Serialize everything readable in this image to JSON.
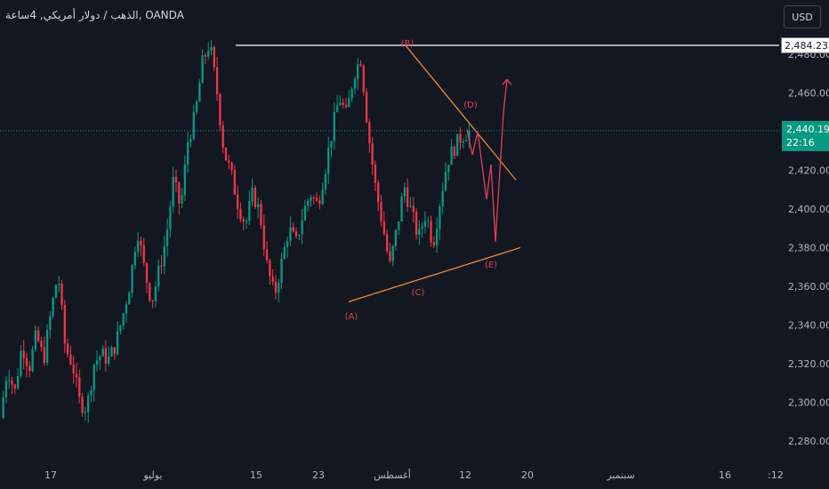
{
  "header": {
    "symbol_title": "الذهب / دولار أمريكي, 4ساعة, OANDA",
    "currency_label": "USD"
  },
  "price_labels": {
    "resistance": "2,484.237",
    "current_price": "2,440.190",
    "countdown": "22:16"
  },
  "colors": {
    "background": "#131722",
    "up_candle": "#089981",
    "down_candle": "#f23645",
    "trendline": "#e8893a",
    "wave_label": "#e0405a",
    "projection": "#e0405a",
    "resistance_line": "#ffffff",
    "current_price_line": "#089981"
  },
  "chart_data": {
    "type": "candlestick",
    "instrument": "XAU/USD",
    "timeframe": "4H",
    "ylim": [
      2272,
      2494
    ],
    "y_ticks": [
      2280,
      2300,
      2320,
      2340,
      2360,
      2380,
      2400,
      2420,
      2440,
      2460,
      2480
    ],
    "y_tick_labels": [
      "2,280.000",
      "2,300.000",
      "2,320.000",
      "2,340.000",
      "2,360.000",
      "2,380.000",
      "2,400.000",
      "2,420.000",
      "2,440.000",
      "2,460.000",
      "2,480.000"
    ],
    "x_tick_labels": [
      "17",
      "يوليو",
      "15",
      "23",
      "أغسطس",
      "12",
      "20",
      "سبتمبر",
      "16",
      ":12"
    ],
    "resistance_level": 2484.237,
    "current_price": 2440.19,
    "price_path": [
      {
        "t": "2024-06-07",
        "p": 2292
      },
      {
        "t": "2024-06-11",
        "p": 2318
      },
      {
        "t": "2024-06-14",
        "p": 2305
      },
      {
        "t": "2024-06-17",
        "p": 2330
      },
      {
        "t": "2024-06-20",
        "p": 2318
      },
      {
        "t": "2024-06-24",
        "p": 2335
      },
      {
        "t": "2024-06-26",
        "p": 2322
      },
      {
        "t": "2024-06-28",
        "p": 2346
      },
      {
        "t": "2024-06-30",
        "p": 2367
      },
      {
        "t": "2024-07-02",
        "p": 2328
      },
      {
        "t": "2024-07-04",
        "p": 2320
      },
      {
        "t": "2024-07-06",
        "p": 2300
      },
      {
        "t": "2024-07-07",
        "p": 2297
      },
      {
        "t": "2024-07-09",
        "p": 2320
      },
      {
        "t": "2024-07-11",
        "p": 2325
      },
      {
        "t": "2024-07-13",
        "p": 2322
      },
      {
        "t": "2024-07-15",
        "p": 2330
      },
      {
        "t": "2024-07-17",
        "p": 2345
      },
      {
        "t": "2024-07-19",
        "p": 2362
      },
      {
        "t": "2024-07-21",
        "p": 2390
      },
      {
        "t": "2024-07-23",
        "p": 2368
      },
      {
        "t": "2024-07-25",
        "p": 2352
      },
      {
        "t": "2024-07-26",
        "p": 2368
      },
      {
        "t": "2024-07-28",
        "p": 2385
      },
      {
        "t": "2024-07-30",
        "p": 2415
      },
      {
        "t": "2024-08-01",
        "p": 2400
      },
      {
        "t": "2024-08-02",
        "p": 2435
      },
      {
        "t": "2024-08-04",
        "p": 2448
      },
      {
        "t": "2024-08-06",
        "p": 2475
      },
      {
        "t": "2024-08-07",
        "p": 2486
      },
      {
        "t": "2024-08-08",
        "p": 2462
      },
      {
        "t": "2024-08-10",
        "p": 2430
      },
      {
        "t": "2024-08-12",
        "p": 2418
      },
      {
        "t": "2024-08-14",
        "p": 2402
      },
      {
        "t": "2024-08-15",
        "p": 2392
      },
      {
        "t": "2024-08-17",
        "p": 2408
      },
      {
        "t": "2024-08-19",
        "p": 2398
      },
      {
        "t": "2024-08-21",
        "p": 2370
      },
      {
        "t": "2024-08-22",
        "p": 2355
      },
      {
        "t": "2024-08-24",
        "p": 2372
      },
      {
        "t": "2024-08-26",
        "p": 2390
      },
      {
        "t": "2024-08-27",
        "p": 2382
      },
      {
        "t": "2024-08-29",
        "p": 2398
      },
      {
        "t": "2024-08-30",
        "p": 2408
      },
      {
        "t": "2024-08-31",
        "p": 2402
      },
      {
        "t": "2024-09-01",
        "p": 2420
      },
      {
        "t": "2024-09-03",
        "p": 2440
      },
      {
        "t": "2024-09-04",
        "p": 2458
      },
      {
        "t": "2024-09-05",
        "p": 2448
      },
      {
        "t": "2024-09-06",
        "p": 2470
      },
      {
        "t": "2024-09-07",
        "p": 2478
      },
      {
        "t": "2024-09-08",
        "p": 2440
      },
      {
        "t": "2024-09-09",
        "p": 2412
      },
      {
        "t": "2024-09-10",
        "p": 2392
      },
      {
        "t": "2024-09-10T12",
        "p": 2370
      },
      {
        "t": "2024-09-11",
        "p": 2390
      },
      {
        "t": "2024-09-12",
        "p": 2412
      },
      {
        "t": "2024-09-13",
        "p": 2398
      },
      {
        "t": "2024-09-14",
        "p": 2385
      },
      {
        "t": "2024-09-15",
        "p": 2398
      },
      {
        "t": "2024-09-16",
        "p": 2382
      },
      {
        "t": "2024-09-17",
        "p": 2405
      },
      {
        "t": "2024-09-18",
        "p": 2425
      },
      {
        "t": "2024-09-19",
        "p": 2432
      },
      {
        "t": "2024-09-20",
        "p": 2438
      },
      {
        "t": "2024-09-21",
        "p": 2440
      }
    ],
    "waves": [
      {
        "label": "(A)",
        "price": 2353
      },
      {
        "label": "(B)",
        "price": 2486
      },
      {
        "label": "(C)",
        "price": 2367
      },
      {
        "label": "(D)",
        "price": 2441
      },
      {
        "label": "(E)",
        "price": 2381
      }
    ],
    "trendlines": [
      {
        "name": "upper",
        "from": 2486,
        "to": 2415
      },
      {
        "name": "lower",
        "from": 2352,
        "to": 2380
      }
    ],
    "projection_path": [
      2441,
      2428,
      2440,
      2405,
      2423,
      2383,
      2450,
      2467
    ]
  }
}
